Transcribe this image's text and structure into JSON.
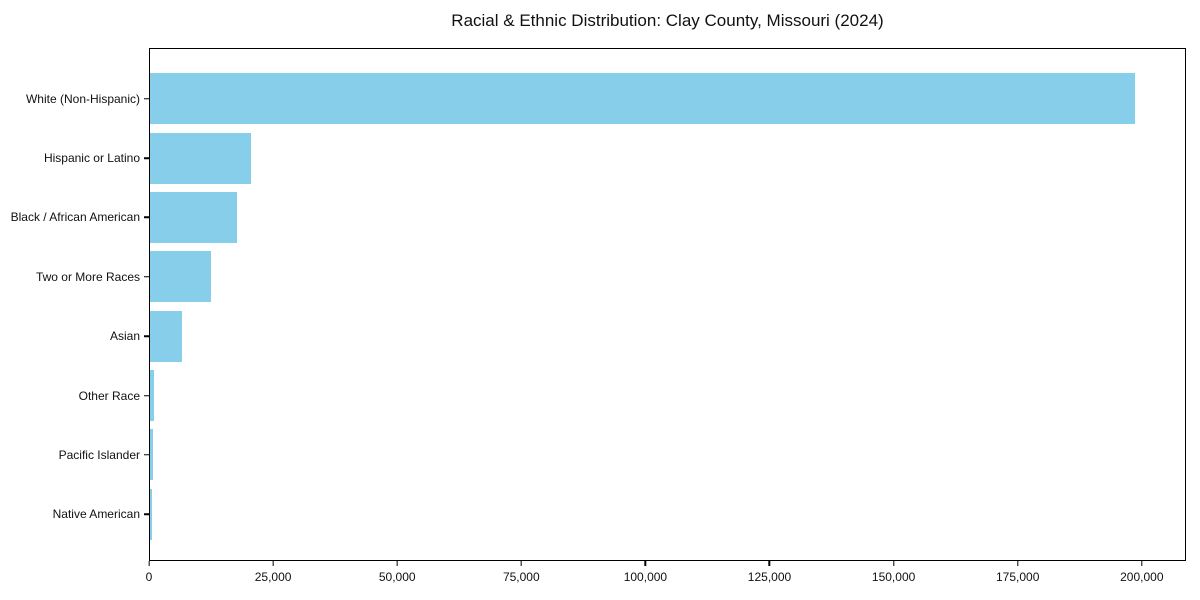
{
  "chart_data": {
    "type": "bar",
    "orientation": "horizontal",
    "title": "Racial & Ethnic Distribution: Clay County, Missouri (2024)",
    "xlabel": "",
    "ylabel": "",
    "categories": [
      "White (Non-Hispanic)",
      "Hispanic or Latino",
      "Black / African American",
      "Two or More Races",
      "Asian",
      "Other Race",
      "Pacific Islander",
      "Native American"
    ],
    "values": [
      198800,
      20300,
      17500,
      12300,
      6400,
      750,
      600,
      400
    ],
    "xlim": [
      0,
      208900
    ],
    "xticks": [
      0,
      25000,
      50000,
      75000,
      100000,
      125000,
      150000,
      175000,
      200000
    ],
    "xtick_labels": [
      "0",
      "25,000",
      "50,000",
      "75,000",
      "100,000",
      "125,000",
      "150,000",
      "175,000",
      "200,000"
    ],
    "bar_color": "#87CEEB",
    "grid": false,
    "legend": null
  }
}
